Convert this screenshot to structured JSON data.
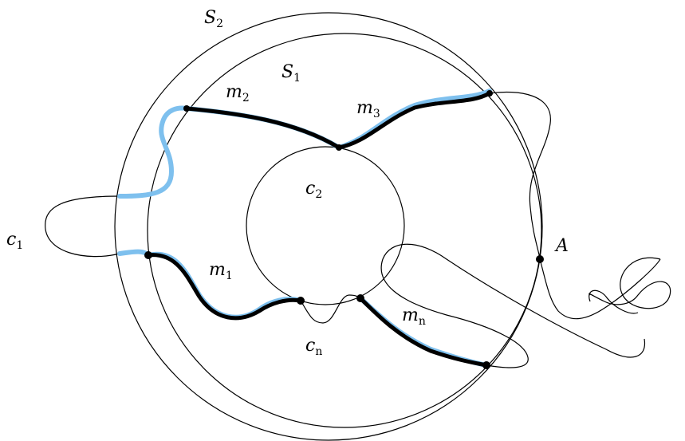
{
  "labels": {
    "S2": {
      "main": "S",
      "sub": "2"
    },
    "S1": {
      "main": "S",
      "sub": "1"
    },
    "c2": {
      "main": "c",
      "sub": "2"
    },
    "c1": {
      "main": "c",
      "sub": "1"
    },
    "cn": {
      "main": "c",
      "sub": "n"
    },
    "m1": {
      "main": "m",
      "sub": "1"
    },
    "m2": {
      "main": "m",
      "sub": "2"
    },
    "m3": {
      "main": "m",
      "sub": "3"
    },
    "mn": {
      "main": "m",
      "sub": "n"
    },
    "A": {
      "main": "A",
      "sub": ""
    }
  },
  "colors": {
    "stroke": "#000000",
    "highlight": "#7ec0ee",
    "background": "#ffffff"
  }
}
